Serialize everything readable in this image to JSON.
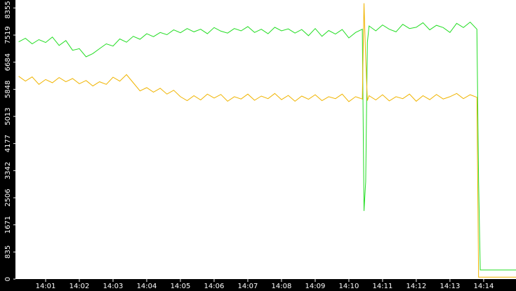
{
  "chart_data": {
    "type": "line",
    "x": [
      0.2,
      0.4,
      0.6,
      0.8,
      1.0,
      1.2,
      1.4,
      1.6,
      1.8,
      2.0,
      2.2,
      2.4,
      2.6,
      2.8,
      3.0,
      3.2,
      3.4,
      3.6,
      3.8,
      4.0,
      4.2,
      4.4,
      4.6,
      4.8,
      5.0,
      5.2,
      5.4,
      5.6,
      5.8,
      6.0,
      6.2,
      6.4,
      6.6,
      6.8,
      7.0,
      7.2,
      7.4,
      7.6,
      7.8,
      8.0,
      8.2,
      8.4,
      8.6,
      8.8,
      9.0,
      9.2,
      9.4,
      9.6,
      9.8,
      10.0,
      10.2,
      10.4,
      10.45,
      10.5,
      10.55,
      10.6,
      10.8,
      11.0,
      11.2,
      11.4,
      11.6,
      11.8,
      12.0,
      12.2,
      12.4,
      12.6,
      12.8,
      13.0,
      13.2,
      13.4,
      13.6,
      13.8,
      13.85,
      13.9,
      14.2,
      14.6,
      14.96
    ],
    "series": [
      {
        "color": "#22dd22",
        "values": [
          7310,
          7420,
          7250,
          7380,
          7290,
          7460,
          7200,
          7350,
          7050,
          7100,
          6850,
          6950,
          7100,
          7250,
          7180,
          7400,
          7300,
          7480,
          7390,
          7560,
          7470,
          7600,
          7530,
          7680,
          7590,
          7720,
          7620,
          7700,
          7560,
          7750,
          7640,
          7580,
          7720,
          7650,
          7780,
          7600,
          7700,
          7560,
          7760,
          7650,
          7710,
          7580,
          7690,
          7500,
          7720,
          7480,
          7660,
          7550,
          7690,
          7430,
          7600,
          7700,
          2100,
          3000,
          7300,
          7800,
          7650,
          7830,
          7700,
          7620,
          7850,
          7720,
          7760,
          7900,
          7680,
          7820,
          7750,
          7600,
          7880,
          7750,
          7920,
          7700,
          3000,
          280,
          280,
          280,
          280
        ]
      },
      {
        "color": "#f0b400",
        "values": [
          6250,
          6100,
          6230,
          6000,
          6150,
          6050,
          6210,
          6080,
          6180,
          6020,
          6120,
          5950,
          6080,
          6000,
          6220,
          6100,
          6300,
          6050,
          5800,
          5900,
          5760,
          5880,
          5700,
          5820,
          5620,
          5500,
          5650,
          5520,
          5700,
          5580,
          5690,
          5480,
          5620,
          5550,
          5700,
          5510,
          5640,
          5560,
          5720,
          5530,
          5660,
          5480,
          5640,
          5540,
          5680,
          5500,
          5620,
          5560,
          5700,
          5470,
          5620,
          5550,
          8500,
          6800,
          5500,
          5650,
          5520,
          5680,
          5490,
          5620,
          5560,
          5700,
          5480,
          5650,
          5530,
          5690,
          5550,
          5620,
          5720,
          5560,
          5680,
          5600,
          60,
          60,
          60,
          60,
          60
        ]
      }
    ],
    "xlim": [
      0.104,
      14.96
    ],
    "xticks": [
      {
        "value": 1,
        "label": "14:01"
      },
      {
        "value": 2,
        "label": "14:02"
      },
      {
        "value": 3,
        "label": "14:03"
      },
      {
        "value": 4,
        "label": "14:04"
      },
      {
        "value": 5,
        "label": "14:05"
      },
      {
        "value": 6,
        "label": "14:06"
      },
      {
        "value": 7,
        "label": "14:07"
      },
      {
        "value": 8,
        "label": "14:08"
      },
      {
        "value": 9,
        "label": "14:09"
      },
      {
        "value": 10,
        "label": "14:10"
      },
      {
        "value": 11,
        "label": "14:11"
      },
      {
        "value": 12,
        "label": "14:12"
      },
      {
        "value": 13,
        "label": "14:13"
      },
      {
        "value": 14,
        "label": "14:14"
      }
    ],
    "ylim": [
      0,
      8600
    ],
    "yticks": [
      0,
      835,
      1671,
      2506,
      3342,
      4177,
      5013,
      5848,
      6684,
      7519,
      8355
    ]
  }
}
